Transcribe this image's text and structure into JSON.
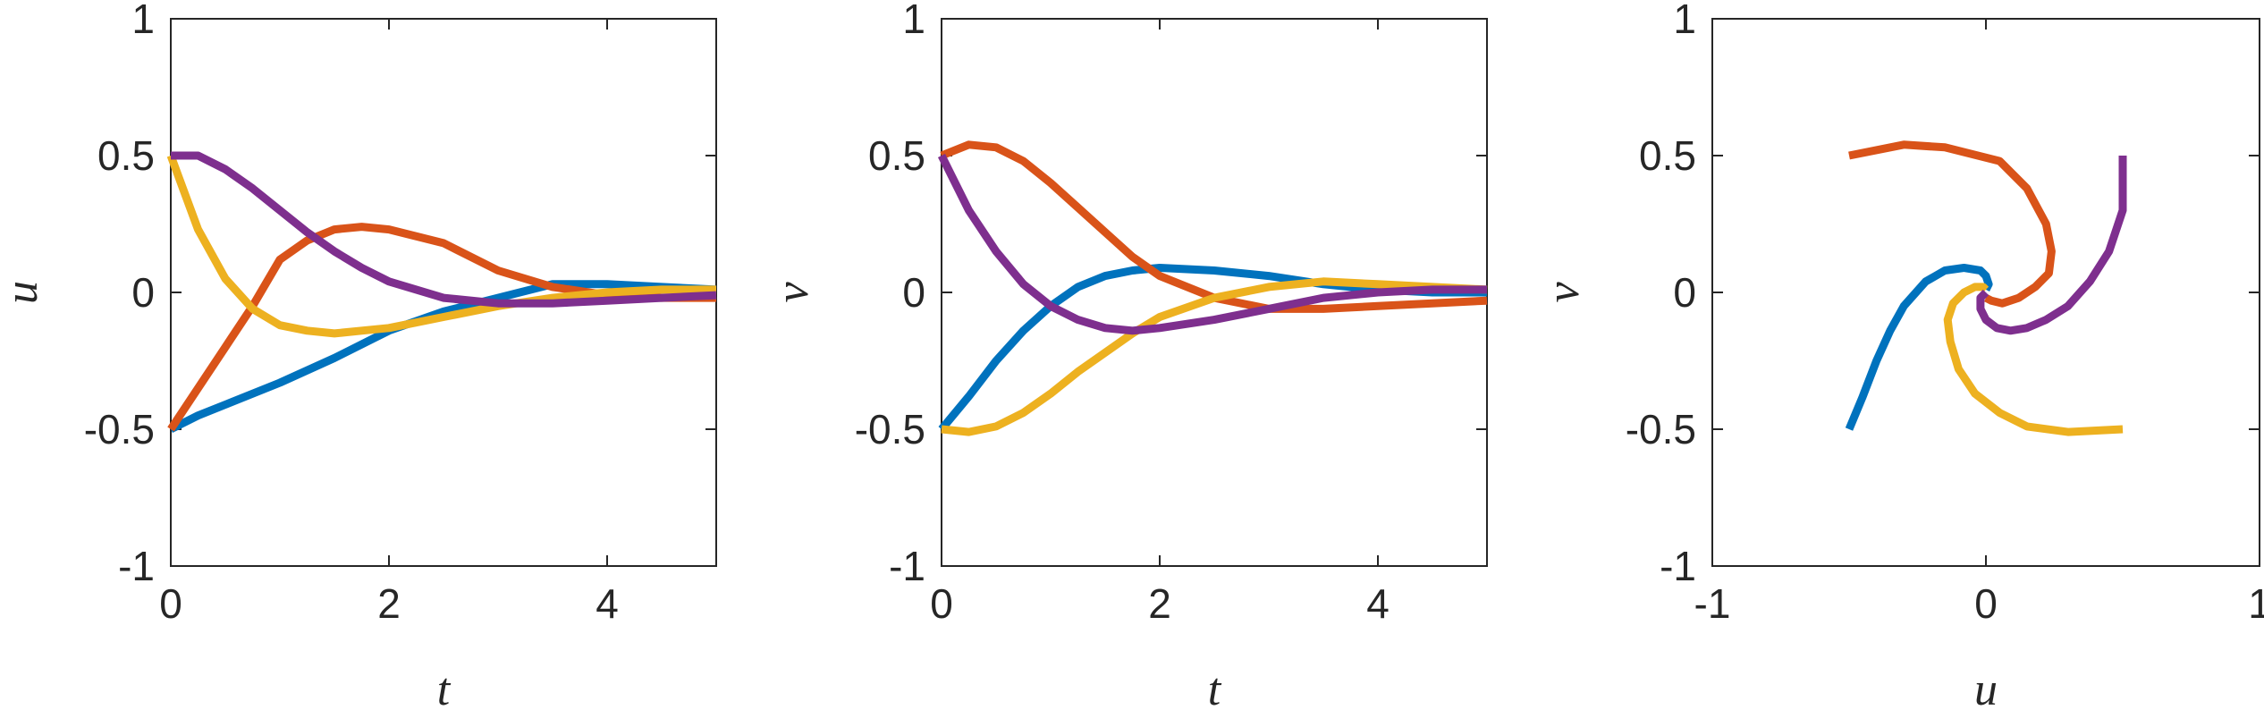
{
  "colors": {
    "series_1": "#0072BD",
    "series_2": "#D95319",
    "series_3": "#EDB120",
    "series_4": "#7E2F8E"
  },
  "chart_data": [
    {
      "type": "line",
      "xlabel": "t",
      "ylabel": "u",
      "xlim": [
        0,
        5
      ],
      "ylim": [
        -1,
        1
      ],
      "xticks": [
        0,
        2,
        4
      ],
      "xtick_labels": [
        "0",
        "2",
        "4"
      ],
      "yticks": [
        -1,
        -0.5,
        0,
        0.5,
        1
      ],
      "ytick_labels": [
        "-1",
        "-0.5",
        "0",
        "0.5",
        "1"
      ],
      "grid": false,
      "series": [
        {
          "x": [
            0,
            0.25,
            0.5,
            1,
            1.5,
            2,
            2.5,
            3,
            3.5,
            4,
            4.5,
            5
          ],
          "y": [
            -0.5,
            -0.45,
            -0.41,
            -0.33,
            -0.24,
            -0.14,
            -0.07,
            -0.02,
            0.03,
            0.03,
            0.02,
            0.01
          ]
        },
        {
          "x": [
            0,
            0.25,
            0.5,
            0.75,
            1,
            1.25,
            1.5,
            1.75,
            2,
            2.5,
            3,
            3.5,
            4,
            4.5,
            5
          ],
          "y": [
            -0.5,
            -0.35,
            -0.2,
            -0.05,
            0.12,
            0.19,
            0.23,
            0.24,
            0.23,
            0.18,
            0.08,
            0.02,
            -0.01,
            -0.02,
            -0.02
          ]
        },
        {
          "x": [
            0,
            0.25,
            0.5,
            0.75,
            1,
            1.25,
            1.5,
            1.75,
            2,
            2.5,
            3,
            3.5,
            4,
            4.5,
            5
          ],
          "y": [
            0.5,
            0.23,
            0.05,
            -0.06,
            -0.12,
            -0.14,
            -0.15,
            -0.14,
            -0.13,
            -0.09,
            -0.05,
            -0.02,
            0.0,
            0.01,
            0.01
          ]
        },
        {
          "x": [
            0,
            0.25,
            0.5,
            0.75,
            1,
            1.25,
            1.5,
            1.75,
            2,
            2.5,
            3,
            3.5,
            4,
            4.5,
            5
          ],
          "y": [
            0.5,
            0.5,
            0.45,
            0.38,
            0.3,
            0.22,
            0.15,
            0.09,
            0.04,
            -0.02,
            -0.04,
            -0.04,
            -0.03,
            -0.02,
            -0.01
          ]
        }
      ]
    },
    {
      "type": "line",
      "xlabel": "t",
      "ylabel": "v",
      "xlim": [
        0,
        5
      ],
      "ylim": [
        -1,
        1
      ],
      "xticks": [
        0,
        2,
        4
      ],
      "xtick_labels": [
        "0",
        "2",
        "4"
      ],
      "yticks": [
        -1,
        -0.5,
        0,
        0.5,
        1
      ],
      "ytick_labels": [
        "-1",
        "-0.5",
        "0",
        "0.5",
        "1"
      ],
      "grid": false,
      "series": [
        {
          "x": [
            0,
            0.25,
            0.5,
            0.75,
            1,
            1.25,
            1.5,
            1.75,
            2,
            2.5,
            3,
            3.5,
            4,
            4.5,
            5
          ],
          "y": [
            -0.5,
            -0.38,
            -0.25,
            -0.14,
            -0.05,
            0.02,
            0.06,
            0.08,
            0.09,
            0.08,
            0.06,
            0.03,
            0.01,
            0.0,
            0.0
          ]
        },
        {
          "x": [
            0,
            0.25,
            0.5,
            0.75,
            1,
            1.25,
            1.5,
            1.75,
            2,
            2.5,
            3,
            3.5,
            4,
            4.5,
            5
          ],
          "y": [
            0.5,
            0.54,
            0.53,
            0.48,
            0.4,
            0.31,
            0.22,
            0.13,
            0.06,
            -0.02,
            -0.06,
            -0.06,
            -0.05,
            -0.04,
            -0.03
          ]
        },
        {
          "x": [
            0,
            0.25,
            0.5,
            0.75,
            1,
            1.25,
            1.5,
            1.75,
            2,
            2.5,
            3,
            3.5,
            4,
            4.5,
            5
          ],
          "y": [
            -0.5,
            -0.51,
            -0.49,
            -0.44,
            -0.37,
            -0.29,
            -0.22,
            -0.15,
            -0.09,
            -0.02,
            0.02,
            0.04,
            0.03,
            0.02,
            0.01
          ]
        },
        {
          "x": [
            0,
            0.25,
            0.5,
            0.75,
            1,
            1.25,
            1.5,
            1.75,
            2,
            2.5,
            3,
            3.5,
            4,
            4.5,
            5
          ],
          "y": [
            0.5,
            0.3,
            0.15,
            0.03,
            -0.05,
            -0.1,
            -0.13,
            -0.14,
            -0.13,
            -0.1,
            -0.06,
            -0.02,
            0.0,
            0.01,
            0.01
          ]
        }
      ]
    },
    {
      "type": "line",
      "xlabel": "u",
      "ylabel": "v",
      "xlim": [
        -1,
        1
      ],
      "ylim": [
        -1,
        1
      ],
      "xticks": [
        -1,
        0,
        1
      ],
      "xtick_labels": [
        "-1",
        "0",
        "1"
      ],
      "yticks": [
        -1,
        -0.5,
        0,
        0.5,
        1
      ],
      "ytick_labels": [
        "-1",
        "-0.5",
        "0",
        "0.5",
        "1"
      ],
      "grid": false,
      "series": [
        {
          "x": [
            -0.5,
            -0.45,
            -0.4,
            -0.35,
            -0.3,
            -0.22,
            -0.15,
            -0.08,
            -0.02,
            0.0,
            0.01,
            0.0
          ],
          "y": [
            -0.5,
            -0.38,
            -0.25,
            -0.14,
            -0.05,
            0.04,
            0.08,
            0.09,
            0.08,
            0.06,
            0.03,
            0.01
          ]
        },
        {
          "x": [
            -0.5,
            -0.3,
            -0.15,
            0.05,
            0.15,
            0.22,
            0.24,
            0.23,
            0.18,
            0.12,
            0.06,
            0.02,
            0.0
          ],
          "y": [
            0.5,
            0.54,
            0.53,
            0.48,
            0.38,
            0.25,
            0.15,
            0.07,
            0.02,
            -0.02,
            -0.04,
            -0.03,
            -0.02
          ]
        },
        {
          "x": [
            0.5,
            0.3,
            0.15,
            0.05,
            -0.04,
            -0.1,
            -0.13,
            -0.14,
            -0.12,
            -0.08,
            -0.04,
            -0.01,
            0.0
          ],
          "y": [
            -0.5,
            -0.51,
            -0.49,
            -0.44,
            -0.37,
            -0.28,
            -0.18,
            -0.1,
            -0.04,
            0.0,
            0.02,
            0.02,
            0.01
          ]
        },
        {
          "x": [
            0.5,
            0.5,
            0.45,
            0.38,
            0.3,
            0.22,
            0.15,
            0.09,
            0.04,
            0.0,
            -0.02,
            -0.02,
            0.0
          ],
          "y": [
            0.5,
            0.3,
            0.15,
            0.04,
            -0.05,
            -0.1,
            -0.13,
            -0.14,
            -0.13,
            -0.1,
            -0.06,
            -0.02,
            0.0
          ]
        }
      ]
    }
  ]
}
